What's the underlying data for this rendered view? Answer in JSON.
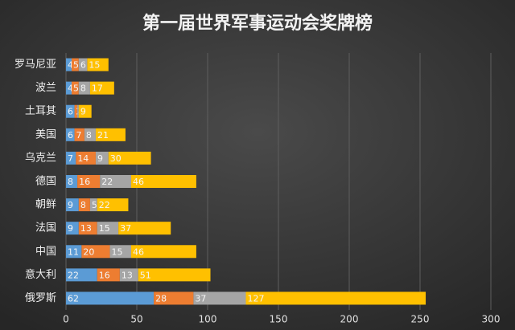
{
  "chart_data": {
    "type": "stacked-bar-horizontal",
    "title": "第一届世界军事运动会奖牌榜",
    "categories": [
      "罗马尼亚",
      "波兰",
      "土耳其",
      "美国",
      "乌克兰",
      "德国",
      "朝鲜",
      "法国",
      "中国",
      "意大利",
      "俄罗斯"
    ],
    "series": [
      {
        "color": "#5b9bd5",
        "values": [
          4,
          4,
          6,
          6,
          7,
          8,
          9,
          9,
          11,
          22,
          62
        ]
      },
      {
        "color": "#ed7d31",
        "values": [
          5,
          5,
          2,
          7,
          14,
          16,
          8,
          13,
          20,
          16,
          28
        ]
      },
      {
        "color": "#a5a5a5",
        "values": [
          6,
          8,
          1,
          8,
          9,
          22,
          5,
          15,
          15,
          13,
          37
        ]
      },
      {
        "color": "#ffc000",
        "values": [
          15,
          17,
          9,
          21,
          30,
          46,
          22,
          37,
          46,
          51,
          127
        ]
      }
    ],
    "xlim": [
      0,
      300
    ],
    "xticks": [
      0,
      50,
      100,
      150,
      200,
      250,
      300
    ],
    "grid": true
  }
}
